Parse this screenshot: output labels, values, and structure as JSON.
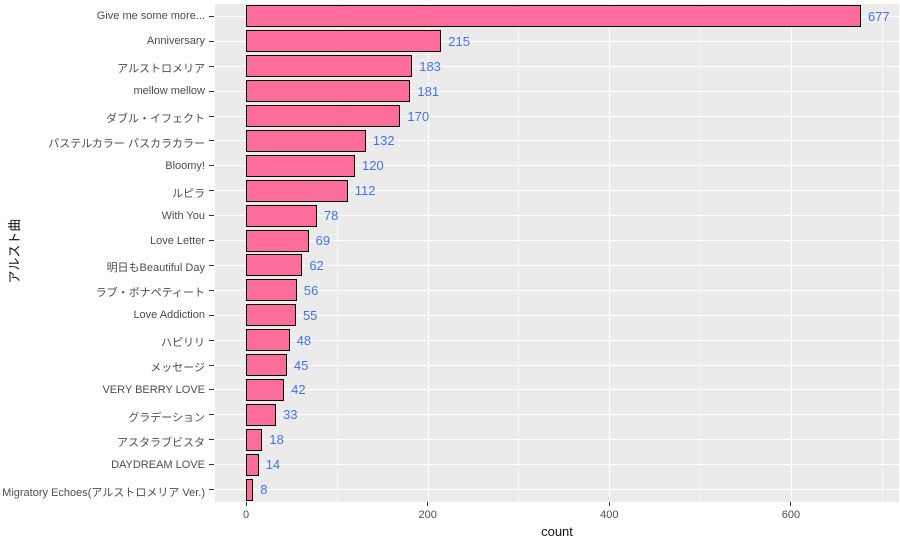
{
  "chart_data": {
    "type": "bar",
    "orientation": "horizontal",
    "title": "",
    "xlabel": "count",
    "ylabel": "アルスト曲",
    "categories": [
      "Give me some more...",
      "Anniversary",
      "アルストロメリア",
      "mellow mellow",
      "ダブル・イフェクト",
      "パステルカラー パスカラカラー",
      "Bloomy!",
      "ルピラ",
      "With You",
      "Love Letter",
      "明日もBeautiful Day",
      "ラブ・ボナペティート",
      "Love Addiction",
      "ハピリリ",
      "メッセージ",
      "VERY BERRY LOVE",
      "グラデーション",
      "アスタラブビスタ",
      "DAYDREAM LOVE",
      "Migratory Echoes(アルストロメリア Ver.)"
    ],
    "values": [
      677,
      215,
      183,
      181,
      170,
      132,
      120,
      112,
      78,
      69,
      62,
      56,
      55,
      48,
      45,
      42,
      33,
      18,
      14,
      8
    ],
    "x_ticks": [
      0,
      200,
      400,
      600
    ],
    "x_minor_ticks": [
      100,
      300,
      500,
      700
    ],
    "xlim": [
      -34,
      719
    ],
    "grid": true,
    "legend": "none",
    "colors": {
      "bar_fill": "#FC6D9C",
      "bar_stroke": "#000000",
      "value_label": "#4671E8",
      "panel_bg": "#EBEBEB",
      "axis_text": "#4D4D4D"
    }
  }
}
